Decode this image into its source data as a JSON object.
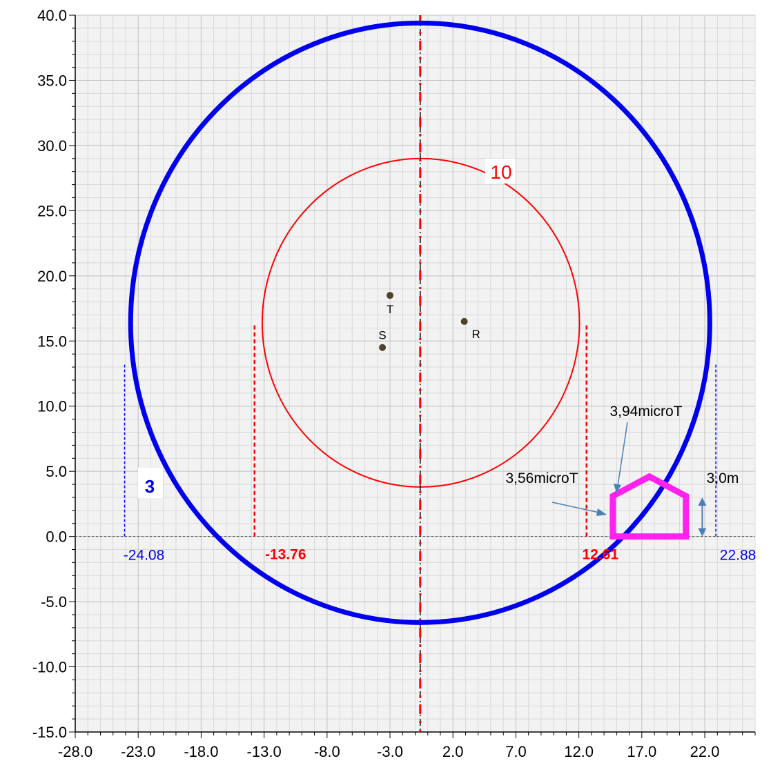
{
  "chart_data": {
    "type": "scatter",
    "title": "",
    "xlabel": "",
    "ylabel": "",
    "xlim": [
      -28,
      26
    ],
    "ylim": [
      -15,
      40
    ],
    "grid": true,
    "x_ticks": [
      "-28.0",
      "-23.0",
      "-18.0",
      "-13.0",
      "-8.0",
      "-3.0",
      "2.0",
      "7.0",
      "12.0",
      "17.0",
      "22.0"
    ],
    "x_tick_values": [
      -28,
      -23,
      -18,
      -13,
      -8,
      -3,
      2,
      7,
      12,
      17,
      22
    ],
    "y_ticks": [
      "-15.0",
      "-10.0",
      "-5.0",
      "0.0",
      "5.0",
      "10.0",
      "15.0",
      "20.0",
      "25.0",
      "30.0",
      "35.0",
      "40.0"
    ],
    "y_tick_values": [
      -15,
      -10,
      -5,
      0,
      5,
      10,
      15,
      20,
      25,
      30,
      35,
      40
    ],
    "conductors": [
      {
        "label": "T",
        "x": -3.0,
        "y": 18.5
      },
      {
        "label": "S",
        "x": -3.6,
        "y": 14.5
      },
      {
        "label": "R",
        "x": 2.9,
        "y": 16.5
      }
    ],
    "contours": [
      {
        "name": "3",
        "center": [
          -0.6,
          16.4
        ],
        "radius": 23.0,
        "color": "#0000ee",
        "intersections": [
          -24.08,
          22.88
        ],
        "intersection_labels": [
          "-24.08",
          "22.88"
        ]
      },
      {
        "name": "10",
        "center": [
          -0.55,
          16.4
        ],
        "radius": 12.6,
        "color": "#ff0000",
        "intersections": [
          -13.76,
          12.61
        ],
        "intersection_labels": [
          "-13.76",
          "12.61"
        ]
      }
    ],
    "axis_line_x": -0.6,
    "house": {
      "outline": [
        [
          14.7,
          0
        ],
        [
          14.7,
          3.1
        ],
        [
          17.6,
          4.6
        ],
        [
          20.5,
          3.1
        ],
        [
          20.5,
          0
        ]
      ],
      "color": "#ff22ee"
    },
    "annotations": {
      "upper_label": "3,94microT",
      "lower_label": "3,56microT",
      "height_label": "3,0m",
      "height_arrow_x": 21.8,
      "height_range": [
        0,
        3.0
      ]
    }
  }
}
